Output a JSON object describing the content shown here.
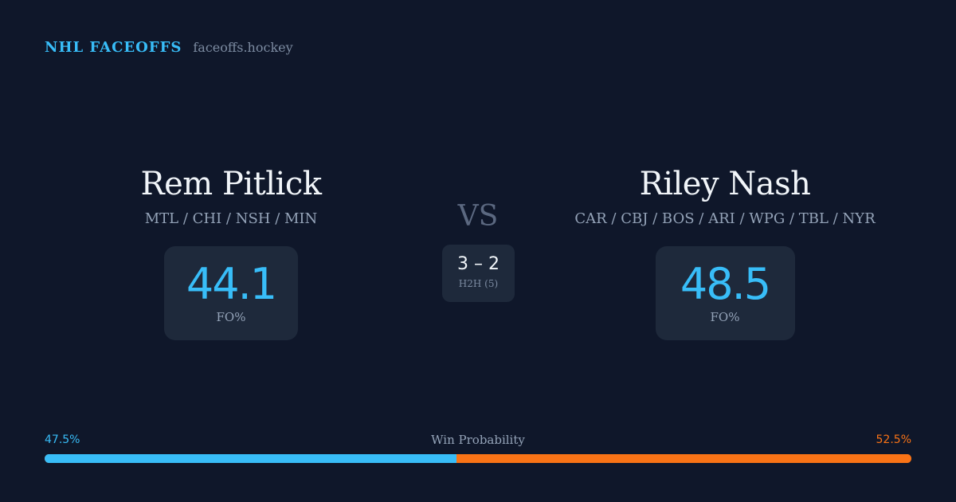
{
  "brand": {
    "title": "NHL FACEOFFS",
    "site": "faceoffs.hockey"
  },
  "players": [
    {
      "name": "Rem Pitlick",
      "teams": "MTL / CHI / NSH / MIN",
      "fo_value": "44.1",
      "fo_label": "FO%"
    },
    {
      "name": "Riley Nash",
      "teams": "CAR / CBJ / BOS / ARI / WPG / TBL / NYR",
      "fo_value": "48.5",
      "fo_label": "FO%"
    }
  ],
  "vs_label": "VS",
  "h2h": {
    "score": "3 – 2",
    "label": "H2H (5)"
  },
  "win_probability": {
    "title": "Win Probability",
    "left_label": "47.5%",
    "right_label": "52.5%",
    "left_fraction": 0.475,
    "right_fraction": 0.525
  },
  "colors": {
    "background": "#0f172a",
    "accent_left": "#38bdf8",
    "accent_right": "#f97316",
    "card": "#1e293b"
  }
}
